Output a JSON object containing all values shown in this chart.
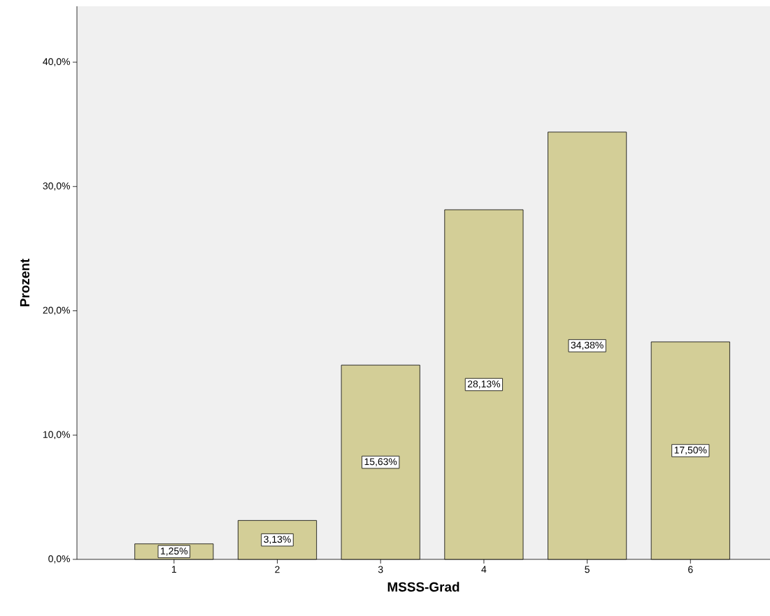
{
  "chart_data": {
    "type": "bar",
    "xlabel": "MSSS-Grad",
    "ylabel": "Prozent",
    "categories": [
      "1",
      "2",
      "3",
      "4",
      "5",
      "6"
    ],
    "values": [
      1.25,
      3.13,
      15.63,
      28.13,
      34.38,
      17.5
    ],
    "value_labels": [
      "1,25%",
      "3,13%",
      "15,63%",
      "28,13%",
      "34,38%",
      "17,50%"
    ],
    "color": "#d3ce97",
    "ylim": [
      0,
      44.5
    ],
    "yticks": [
      {
        "value": 0,
        "label": "0,0%"
      },
      {
        "value": 10,
        "label": "10,0%"
      },
      {
        "value": 20,
        "label": "20,0%"
      },
      {
        "value": 30,
        "label": "30,0%"
      },
      {
        "value": 40,
        "label": "40,0%"
      }
    ]
  }
}
